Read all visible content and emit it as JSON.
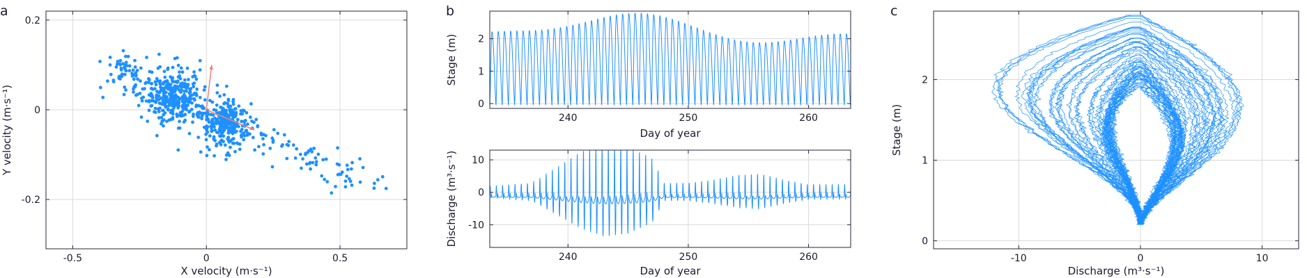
{
  "colors": {
    "series": "#1e90ff",
    "arrow": "#f08070",
    "axis": "#26263a",
    "grid": "#d9d9d9"
  },
  "chart_data": [
    {
      "id": "a",
      "type": "scatter",
      "panel_label": "a",
      "xlabel": "X velocity (m·s⁻¹)",
      "ylabel": "Y velocity (m·s⁻¹)",
      "xlim": [
        -0.6,
        0.75
      ],
      "ylim": [
        -0.31,
        0.22
      ],
      "xticks": [
        -0.5,
        0,
        0.5
      ],
      "xtick_labels": [
        "-0.5",
        "0",
        "0.5"
      ],
      "yticks": [
        -0.2,
        0,
        0.2
      ],
      "ytick_labels": [
        "-0.2",
        "0",
        "0.2"
      ],
      "grid": true,
      "clusters": [
        {
          "center": [
            -0.12,
            0.03
          ],
          "spread": [
            0.055,
            0.028
          ],
          "count": 320
        },
        {
          "center": [
            0.07,
            -0.03
          ],
          "spread": [
            0.045,
            0.025
          ],
          "count": 260
        },
        {
          "center": [
            -0.3,
            0.08
          ],
          "spread": [
            0.05,
            0.02
          ],
          "count": 40
        }
      ],
      "trend": {
        "from": [
          -0.38,
          0.1
        ],
        "to": [
          0.65,
          -0.18
        ],
        "count": 150,
        "scatter": 0.018
      },
      "arrows": [
        {
          "from": [
            0.0,
            0.0
          ],
          "to": [
            0.02,
            0.1
          ]
        },
        {
          "from": [
            0.0,
            0.0
          ],
          "to": [
            0.18,
            -0.045
          ]
        }
      ]
    },
    {
      "id": "b1",
      "type": "line",
      "panel_label": "b",
      "xlabel": "Day of year",
      "ylabel": "Stage (m)",
      "xlim": [
        233.5,
        263.5
      ],
      "ylim": [
        -0.15,
        2.85
      ],
      "xticks": [
        240,
        250,
        260
      ],
      "xtick_labels": [
        "240",
        "250",
        "260"
      ],
      "yticks": [
        0,
        1,
        2
      ],
      "ytick_labels": [
        "0",
        "1",
        "2"
      ],
      "grid": true,
      "series": [
        {
          "x_start": 233.5,
          "x_end": 263.5,
          "period_days": 0.517,
          "baseline": -0.05,
          "amplitude_min": 2.0,
          "amplitude_max": 2.85,
          "amplitude_peak_day": 244
        }
      ]
    },
    {
      "id": "b2",
      "type": "line",
      "xlabel": "Day of year",
      "ylabel": "Discharge (m³·s⁻¹)",
      "xlim": [
        233.5,
        263.5
      ],
      "ylim": [
        -17,
        13
      ],
      "xticks": [
        240,
        250,
        260
      ],
      "xtick_labels": [
        "240",
        "250",
        "260"
      ],
      "yticks": [
        -10,
        0,
        10
      ],
      "ytick_labels": [
        "-10",
        "0",
        "10"
      ],
      "grid": true,
      "series": [
        {
          "x_start": 233.5,
          "x_end": 263.5,
          "period_days": 0.517,
          "envelope": [
            [
              233.5,
              2
            ],
            [
              237,
              3
            ],
            [
              239,
              8
            ],
            [
              241,
              13
            ],
            [
              243,
              16
            ],
            [
              245,
              15
            ],
            [
              247,
              11
            ],
            [
              248,
              3
            ],
            [
              250,
              3
            ],
            [
              252,
              4
            ],
            [
              254,
              5.5
            ],
            [
              256,
              6
            ],
            [
              258,
              4
            ],
            [
              260,
              2.5
            ],
            [
              263.5,
              2.5
            ]
          ]
        }
      ]
    },
    {
      "id": "c",
      "type": "line",
      "panel_label": "c",
      "xlabel": "Discharge (m³·s⁻¹)",
      "ylabel": "Stage (m)",
      "xlim": [
        -17,
        13
      ],
      "ylim": [
        -0.1,
        2.85
      ],
      "xticks": [
        -10,
        0,
        10
      ],
      "xtick_labels": [
        "-10",
        "0",
        "10"
      ],
      "yticks": [
        0,
        1,
        2
      ],
      "ytick_labels": [
        "0",
        "1",
        "2"
      ],
      "grid": true,
      "loops": 55
    }
  ]
}
